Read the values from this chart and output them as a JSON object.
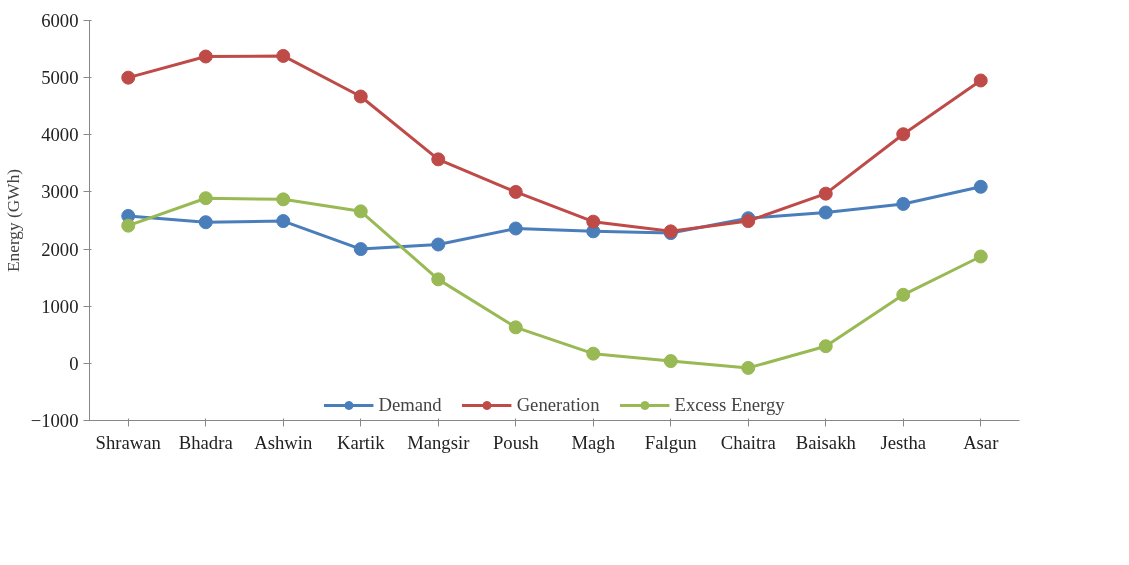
{
  "chart_data": {
    "type": "line",
    "ylabel": "Energy (GWh)",
    "categories": [
      "Shrawan",
      "Bhadra",
      "Ashwin",
      "Kartik",
      "Mangsir",
      "Poush",
      "Magh",
      "Falgun",
      "Chaitra",
      "Baisakh",
      "Jestha",
      "Asar"
    ],
    "series": [
      {
        "name": "Demand",
        "color": "#4a7ebb",
        "values": [
          2580,
          2470,
          2490,
          2000,
          2080,
          2360,
          2310,
          2280,
          2540,
          2640,
          2790,
          3090
        ]
      },
      {
        "name": "Generation",
        "color": "#be4b48",
        "values": [
          5000,
          5370,
          5380,
          4670,
          3570,
          3000,
          2480,
          2310,
          2490,
          2970,
          4010,
          4950
        ]
      },
      {
        "name": "Excess Energy",
        "color": "#98b954",
        "values": [
          2410,
          2890,
          2870,
          2660,
          1470,
          630,
          170,
          40,
          -80,
          300,
          1200,
          1870
        ]
      }
    ],
    "ylim": [
      -1000,
      6000
    ],
    "yticks": [
      -1000,
      0,
      1000,
      2000,
      3000,
      4000,
      5000,
      6000
    ],
    "grid": false,
    "legend": "bottom",
    "marker": "circle",
    "line_style": "solid"
  }
}
